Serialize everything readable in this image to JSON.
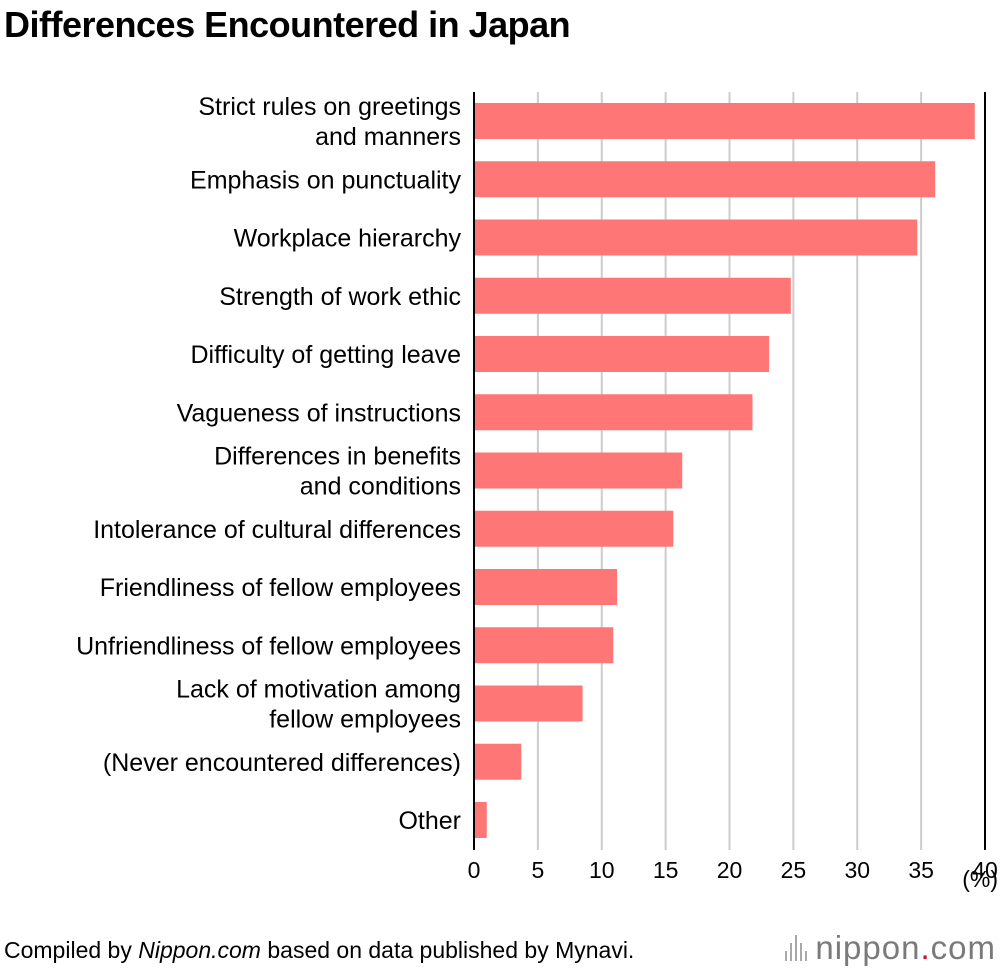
{
  "title": "Differences Encountered in Japan",
  "chart_data": {
    "type": "bar",
    "orientation": "horizontal",
    "categories": [
      [
        "Strict rules on greetings",
        "and manners"
      ],
      [
        "Emphasis on punctuality"
      ],
      [
        "Workplace hierarchy"
      ],
      [
        "Strength of work ethic"
      ],
      [
        "Difficulty of getting leave"
      ],
      [
        "Vagueness of instructions"
      ],
      [
        "Differences in benefits",
        "and conditions"
      ],
      [
        "Intolerance of cultural differences"
      ],
      [
        "Friendliness of fellow employees"
      ],
      [
        "Unfriendliness of fellow employees"
      ],
      [
        "Lack of motivation among",
        "fellow employees"
      ],
      [
        "(Never encountered differences)"
      ],
      [
        "Other"
      ]
    ],
    "values": [
      39.2,
      36.1,
      34.7,
      24.8,
      23.1,
      21.8,
      16.3,
      15.6,
      11.2,
      10.9,
      8.5,
      3.7,
      1.0
    ],
    "xlim": [
      0,
      40
    ],
    "xticks": [
      0,
      5,
      10,
      15,
      20,
      25,
      30,
      35,
      40
    ],
    "xlabel": "(%)",
    "grid": true,
    "bar_color": "#ff7676",
    "grid_color": "#cccccc"
  },
  "footer": {
    "prefix": "Compiled by ",
    "source": "Nippon.com",
    "suffix": " based on data published by Mynavi."
  },
  "logo": {
    "name": "nippon",
    "dot": ".",
    "tld": "com"
  }
}
